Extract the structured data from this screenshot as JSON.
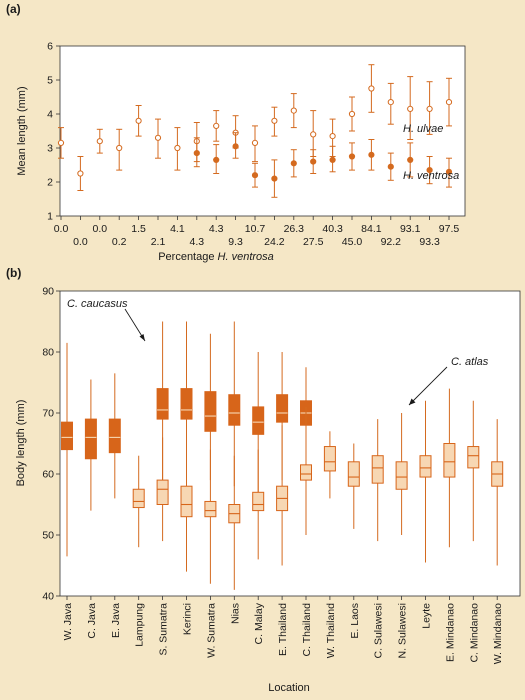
{
  "chart_data": [
    {
      "panel": "(a)",
      "type": "scatter",
      "xlabel_prefix": "Percentage ",
      "xlabel_species": "H. ventrosa",
      "ylabel": "Mean length (mm)",
      "ylim": [
        1,
        6
      ],
      "yticks": [
        1,
        2,
        3,
        4,
        5,
        6
      ],
      "x_labels_top": [
        "0.0",
        "0.0",
        "1.5",
        "4.1",
        "4.3",
        "10.7",
        "26.3",
        "40.3",
        "84.1",
        "93.1",
        "97.5"
      ],
      "x_labels_bottom": [
        "0.0",
        "0.2",
        "2.1",
        "4.3",
        "9.3",
        "24.2",
        "27.5",
        "45.0",
        "92.2",
        "93.3"
      ],
      "series": [
        {
          "name": "H. ulvae",
          "marker": "open-circle",
          "points": [
            {
              "x": "0.0",
              "y": 3.15,
              "lo": 2.7,
              "hi": 3.6
            },
            {
              "x": "0.0",
              "y": 2.25,
              "lo": 1.75,
              "hi": 2.75
            },
            {
              "x": "0.0",
              "y": 3.2,
              "lo": 2.85,
              "hi": 3.55
            },
            {
              "x": "0.2",
              "y": 3.0,
              "lo": 2.35,
              "hi": 3.55
            },
            {
              "x": "1.5",
              "y": 3.8,
              "lo": 3.35,
              "hi": 4.25
            },
            {
              "x": "2.1",
              "y": 3.3,
              "lo": 2.7,
              "hi": 3.85
            },
            {
              "x": "4.1",
              "y": 3.0,
              "lo": 2.35,
              "hi": 3.6
            },
            {
              "x": "4.3",
              "y": 3.2,
              "lo": 2.6,
              "hi": 3.75
            },
            {
              "x": "4.3",
              "y": 3.65,
              "lo": 3.2,
              "hi": 4.1
            },
            {
              "x": "9.3",
              "y": 3.45,
              "lo": 3.0,
              "hi": 3.95
            },
            {
              "x": "10.7",
              "y": 3.15,
              "lo": 2.6,
              "hi": 3.65
            },
            {
              "x": "24.2",
              "y": 3.8,
              "lo": 3.35,
              "hi": 4.2
            },
            {
              "x": "26.3",
              "y": 4.1,
              "lo": 3.6,
              "hi": 4.6
            },
            {
              "x": "27.5",
              "y": 3.4,
              "lo": 2.75,
              "hi": 4.1
            },
            {
              "x": "40.3",
              "y": 3.35,
              "lo": 2.75,
              "hi": 3.85
            },
            {
              "x": "45.0",
              "y": 4.0,
              "lo": 3.5,
              "hi": 4.5
            },
            {
              "x": "84.1",
              "y": 4.75,
              "lo": 4.05,
              "hi": 5.45
            },
            {
              "x": "92.2",
              "y": 4.35,
              "lo": 3.7,
              "hi": 4.9
            },
            {
              "x": "93.1",
              "y": 4.15,
              "lo": 3.25,
              "hi": 5.1
            },
            {
              "x": "93.3",
              "y": 4.15,
              "lo": 3.4,
              "hi": 4.95
            },
            {
              "x": "97.5",
              "y": 4.35,
              "lo": 3.65,
              "hi": 5.05
            }
          ]
        },
        {
          "name": "H. ventrosa",
          "marker": "filled-circle",
          "points": [
            {
              "x": "4.3",
              "y": 2.85,
              "lo": 2.45,
              "hi": 3.3
            },
            {
              "x": "4.3",
              "y": 2.65,
              "lo": 2.25,
              "hi": 3.1
            },
            {
              "x": "9.3",
              "y": 3.05,
              "lo": 2.7,
              "hi": 3.45
            },
            {
              "x": "10.7",
              "y": 2.2,
              "lo": 1.85,
              "hi": 2.55
            },
            {
              "x": "24.2",
              "y": 2.1,
              "lo": 1.55,
              "hi": 2.65
            },
            {
              "x": "26.3",
              "y": 2.55,
              "lo": 2.15,
              "hi": 2.95
            },
            {
              "x": "27.5",
              "y": 2.6,
              "lo": 2.25,
              "hi": 2.95
            },
            {
              "x": "40.3",
              "y": 2.65,
              "lo": 2.3,
              "hi": 3.05
            },
            {
              "x": "45.0",
              "y": 2.75,
              "lo": 2.35,
              "hi": 3.15
            },
            {
              "x": "84.1",
              "y": 2.8,
              "lo": 2.35,
              "hi": 3.25
            },
            {
              "x": "92.2",
              "y": 2.45,
              "lo": 2.05,
              "hi": 2.85
            },
            {
              "x": "93.1",
              "y": 2.65,
              "lo": 2.15,
              "hi": 3.15
            },
            {
              "x": "93.3",
              "y": 2.35,
              "lo": 1.95,
              "hi": 2.75
            },
            {
              "x": "97.5",
              "y": 2.3,
              "lo": 1.85,
              "hi": 2.7
            }
          ]
        }
      ],
      "colors": {
        "series": "#d46a1f",
        "axis": "#333333"
      }
    },
    {
      "panel": "(b)",
      "type": "box",
      "xlabel": "Location",
      "ylabel": "Body length (mm)",
      "ylim": [
        40,
        90
      ],
      "yticks": [
        40,
        50,
        60,
        70,
        80,
        90
      ],
      "categories": [
        "W. Java",
        "C. Java",
        "E. Java",
        "Lampung",
        "S. Sumatra",
        "Kerinci",
        "W. Sumatra",
        "Nias",
        "C. Malay",
        "E. Thailand",
        "C. Thailand",
        "W. Thailand",
        "E. Laos",
        "C. Sulawesi",
        "N. Sulawesi",
        "Leyte",
        "E. Mindanao",
        "C. Mindanao",
        "W. Mindanao"
      ],
      "series": [
        {
          "name": "C. caucasus",
          "style": "filled",
          "boxes": [
            {
              "category": "W. Java",
              "min": 46.5,
              "q1": 64.0,
              "median": 66.0,
              "q3": 68.5,
              "max": 81.5
            },
            {
              "category": "C. Java",
              "min": 54.0,
              "q1": 62.5,
              "median": 66.0,
              "q3": 69.0,
              "max": 75.5
            },
            {
              "category": "E. Java",
              "min": 56.0,
              "q1": 63.5,
              "median": 66.0,
              "q3": 69.0,
              "max": 76.5
            },
            {
              "category": "S. Sumatra",
              "min": 57.0,
              "q1": 69.0,
              "median": 70.5,
              "q3": 74.0,
              "max": 85.0
            },
            {
              "category": "Kerinci",
              "min": 56.0,
              "q1": 69.0,
              "median": 70.5,
              "q3": 74.0,
              "max": 85.0
            },
            {
              "category": "W. Sumatra",
              "min": 59.0,
              "q1": 67.0,
              "median": 69.5,
              "q3": 73.5,
              "max": 83.0
            },
            {
              "category": "Nias",
              "min": 58.0,
              "q1": 68.0,
              "median": 70.0,
              "q3": 73.0,
              "max": 85.0
            },
            {
              "category": "C. Malay",
              "min": 57.0,
              "q1": 66.5,
              "median": 68.5,
              "q3": 71.0,
              "max": 80.0
            },
            {
              "category": "E. Thailand",
              "min": 59.0,
              "q1": 68.5,
              "median": 70.0,
              "q3": 73.0,
              "max": 80.0
            },
            {
              "category": "C. Thailand",
              "min": 59.5,
              "q1": 68.0,
              "median": 70.0,
              "q3": 72.0,
              "max": 77.5
            }
          ]
        },
        {
          "name": "C. atlas",
          "style": "light",
          "boxes": [
            {
              "category": "Lampung",
              "min": 48.0,
              "q1": 54.5,
              "median": 55.5,
              "q3": 57.5,
              "max": 63.0
            },
            {
              "category": "S. Sumatra",
              "min": 49.0,
              "q1": 55.0,
              "median": 57.5,
              "q3": 59.0,
              "max": 66.0
            },
            {
              "category": "Kerinci",
              "min": 44.0,
              "q1": 53.0,
              "median": 55.0,
              "q3": 58.0,
              "max": 68.0
            },
            {
              "category": "W. Sumatra",
              "min": 42.0,
              "q1": 53.0,
              "median": 54.0,
              "q3": 55.5,
              "max": 64.0
            },
            {
              "category": "Nias",
              "min": 41.0,
              "q1": 52.0,
              "median": 53.5,
              "q3": 55.0,
              "max": 63.0
            },
            {
              "category": "C. Malay",
              "min": 46.0,
              "q1": 54.0,
              "median": 55.0,
              "q3": 57.0,
              "max": 64.0
            },
            {
              "category": "E. Thailand",
              "min": 45.0,
              "q1": 54.0,
              "median": 56.0,
              "q3": 58.0,
              "max": 68.0
            },
            {
              "category": "C. Thailand",
              "min": 50.0,
              "q1": 59.0,
              "median": 60.0,
              "q3": 61.5,
              "max": 71.0
            },
            {
              "category": "W. Thailand",
              "min": 56.0,
              "q1": 60.5,
              "median": 62.0,
              "q3": 64.5,
              "max": 67.0
            },
            {
              "category": "E. Laos",
              "min": 51.0,
              "q1": 58.0,
              "median": 59.5,
              "q3": 62.0,
              "max": 65.0
            },
            {
              "category": "C. Sulawesi",
              "min": 49.0,
              "q1": 58.5,
              "median": 61.0,
              "q3": 63.0,
              "max": 69.0
            },
            {
              "category": "N. Sulawesi",
              "min": 50.0,
              "q1": 57.5,
              "median": 59.5,
              "q3": 62.0,
              "max": 70.0
            },
            {
              "category": "Leyte",
              "min": 45.5,
              "q1": 59.5,
              "median": 61.0,
              "q3": 63.0,
              "max": 72.0
            },
            {
              "category": "E. Mindanao",
              "min": 48.0,
              "q1": 59.5,
              "median": 62.0,
              "q3": 65.0,
              "max": 74.0
            },
            {
              "category": "C. Mindanao",
              "min": 49.0,
              "q1": 61.0,
              "median": 63.0,
              "q3": 64.5,
              "max": 72.0
            },
            {
              "category": "W. Mindanao",
              "min": 45.0,
              "q1": 58.0,
              "median": 60.0,
              "q3": 62.0,
              "max": 69.0
            }
          ]
        }
      ],
      "annotations": [
        "C. caucasus",
        "C. atlas"
      ],
      "colors": {
        "dark_box": "#d7651a",
        "light_box": "#f7d7b3",
        "whisker": "#d46a1f",
        "axis": "#333333"
      }
    }
  ]
}
